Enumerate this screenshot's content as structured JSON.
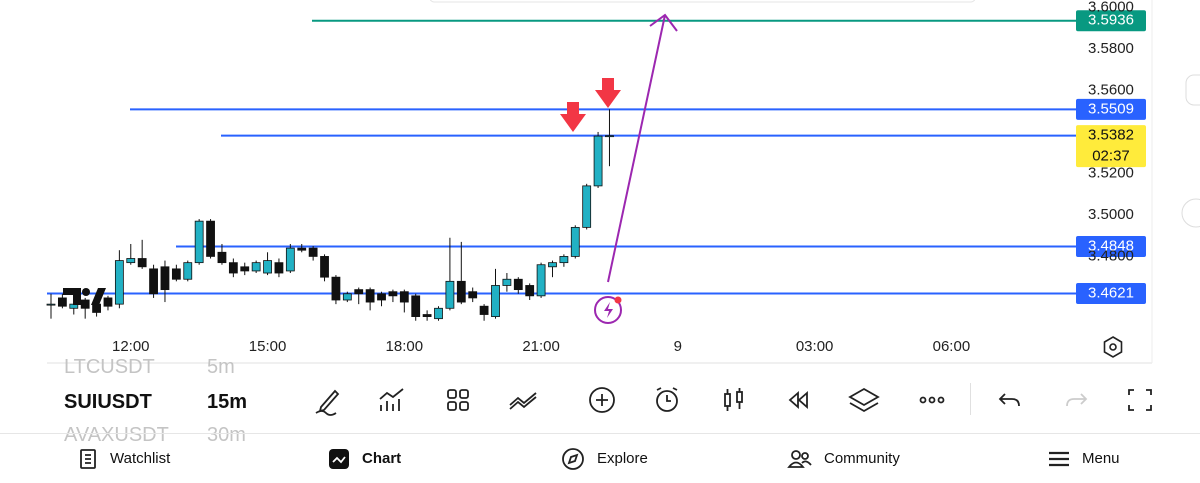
{
  "chart": {
    "type": "candlestick",
    "ylim": [
      3.4455,
      3.6036
    ],
    "xlim": [
      -0.35,
      96.6
    ],
    "yticks": [
      {
        "value": 3.6,
        "label": "3.6000"
      },
      {
        "value": 3.58,
        "label": "3.5800"
      },
      {
        "value": 3.56,
        "label": "3.5600"
      },
      {
        "value": 3.52,
        "label": "3.5200"
      },
      {
        "value": 3.5,
        "label": "3.5000"
      },
      {
        "value": 3.48,
        "label": "3.4800"
      }
    ],
    "xticks": [
      {
        "value": 7,
        "label": "12:00"
      },
      {
        "value": 19,
        "label": "15:00"
      },
      {
        "value": 31,
        "label": "18:00"
      },
      {
        "value": 43,
        "label": "21:00"
      },
      {
        "value": 55,
        "label": "9"
      },
      {
        "value": 67,
        "label": "03:00"
      },
      {
        "value": 79,
        "label": "06:00"
      }
    ],
    "up_color": "#22b1c4",
    "down_color": "#111111",
    "open": [
      3.457,
      3.46,
      3.455,
      3.459,
      3.457,
      3.46,
      3.457,
      3.477,
      3.479,
      3.474,
      3.475,
      3.474,
      3.469,
      3.477,
      3.497,
      3.482,
      3.477,
      3.475,
      3.473,
      3.472,
      3.477,
      3.473,
      3.484,
      3.484,
      3.48,
      3.47,
      3.459,
      3.464,
      3.464,
      3.462,
      3.463,
      3.463,
      3.461,
      3.452,
      3.45,
      3.455,
      3.468,
      3.463,
      3.456,
      3.451,
      3.466,
      3.469,
      3.466,
      3.461,
      3.475,
      3.477,
      3.48,
      3.494,
      3.514,
      3.538
    ],
    "high": [
      3.462,
      3.462,
      3.459,
      3.46,
      3.459,
      3.461,
      3.483,
      3.486,
      3.488,
      3.476,
      3.478,
      3.476,
      3.478,
      3.498,
      3.498,
      3.486,
      3.479,
      3.477,
      3.478,
      3.482,
      3.479,
      3.486,
      3.486,
      3.485,
      3.481,
      3.471,
      3.463,
      3.465,
      3.465,
      3.463,
      3.464,
      3.464,
      3.462,
      3.454,
      3.456,
      3.489,
      3.487,
      3.465,
      3.457,
      3.474,
      3.472,
      3.47,
      3.467,
      3.477,
      3.478,
      3.481,
      3.495,
      3.515,
      3.54,
      3.5509
    ],
    "low": [
      3.45,
      3.455,
      3.452,
      3.45,
      3.451,
      3.454,
      3.455,
      3.476,
      3.474,
      3.46,
      3.458,
      3.468,
      3.468,
      3.476,
      3.479,
      3.476,
      3.47,
      3.471,
      3.472,
      3.471,
      3.47,
      3.472,
      3.482,
      3.478,
      3.468,
      3.457,
      3.458,
      3.457,
      3.454,
      3.456,
      3.458,
      3.453,
      3.449,
      3.449,
      3.449,
      3.454,
      3.457,
      3.458,
      3.449,
      3.45,
      3.463,
      3.462,
      3.459,
      3.46,
      3.47,
      3.475,
      3.479,
      3.493,
      3.513,
      3.5235
    ],
    "close": [
      3.457,
      3.456,
      3.457,
      3.455,
      3.453,
      3.456,
      3.478,
      3.479,
      3.475,
      3.462,
      3.464,
      3.469,
      3.477,
      3.497,
      3.48,
      3.477,
      3.472,
      3.473,
      3.477,
      3.478,
      3.472,
      3.484,
      3.483,
      3.48,
      3.47,
      3.459,
      3.462,
      3.462,
      3.458,
      3.459,
      3.461,
      3.458,
      3.451,
      3.451,
      3.455,
      3.468,
      3.458,
      3.46,
      3.452,
      3.466,
      3.469,
      3.464,
      3.461,
      3.476,
      3.477,
      3.48,
      3.494,
      3.514,
      3.538,
      3.5382
    ],
    "levels": [
      {
        "value": 3.5936,
        "label": "3.5936",
        "color": "#089981"
      },
      {
        "value": 3.5509,
        "label": "3.5509",
        "color": "#2962ff"
      },
      {
        "value": 3.5382,
        "label": "3.5382",
        "color": "#2962ff",
        "label_color": "#ffeb3b",
        "countdown": "02:37"
      },
      {
        "value": 3.4848,
        "label": "3.4848",
        "color": "#2962ff"
      },
      {
        "value": 3.4621,
        "label": "3.4621",
        "color": "#2962ff"
      }
    ]
  },
  "symbols": [
    {
      "name": "LTCUSDT",
      "interval": "5m"
    },
    {
      "name": "SUIUSDT",
      "interval": "15m"
    },
    {
      "name": "AVAXUSDT",
      "interval": "30m"
    }
  ],
  "nav": [
    "Watchlist",
    "Chart",
    "Explore",
    "Community",
    "Menu"
  ]
}
